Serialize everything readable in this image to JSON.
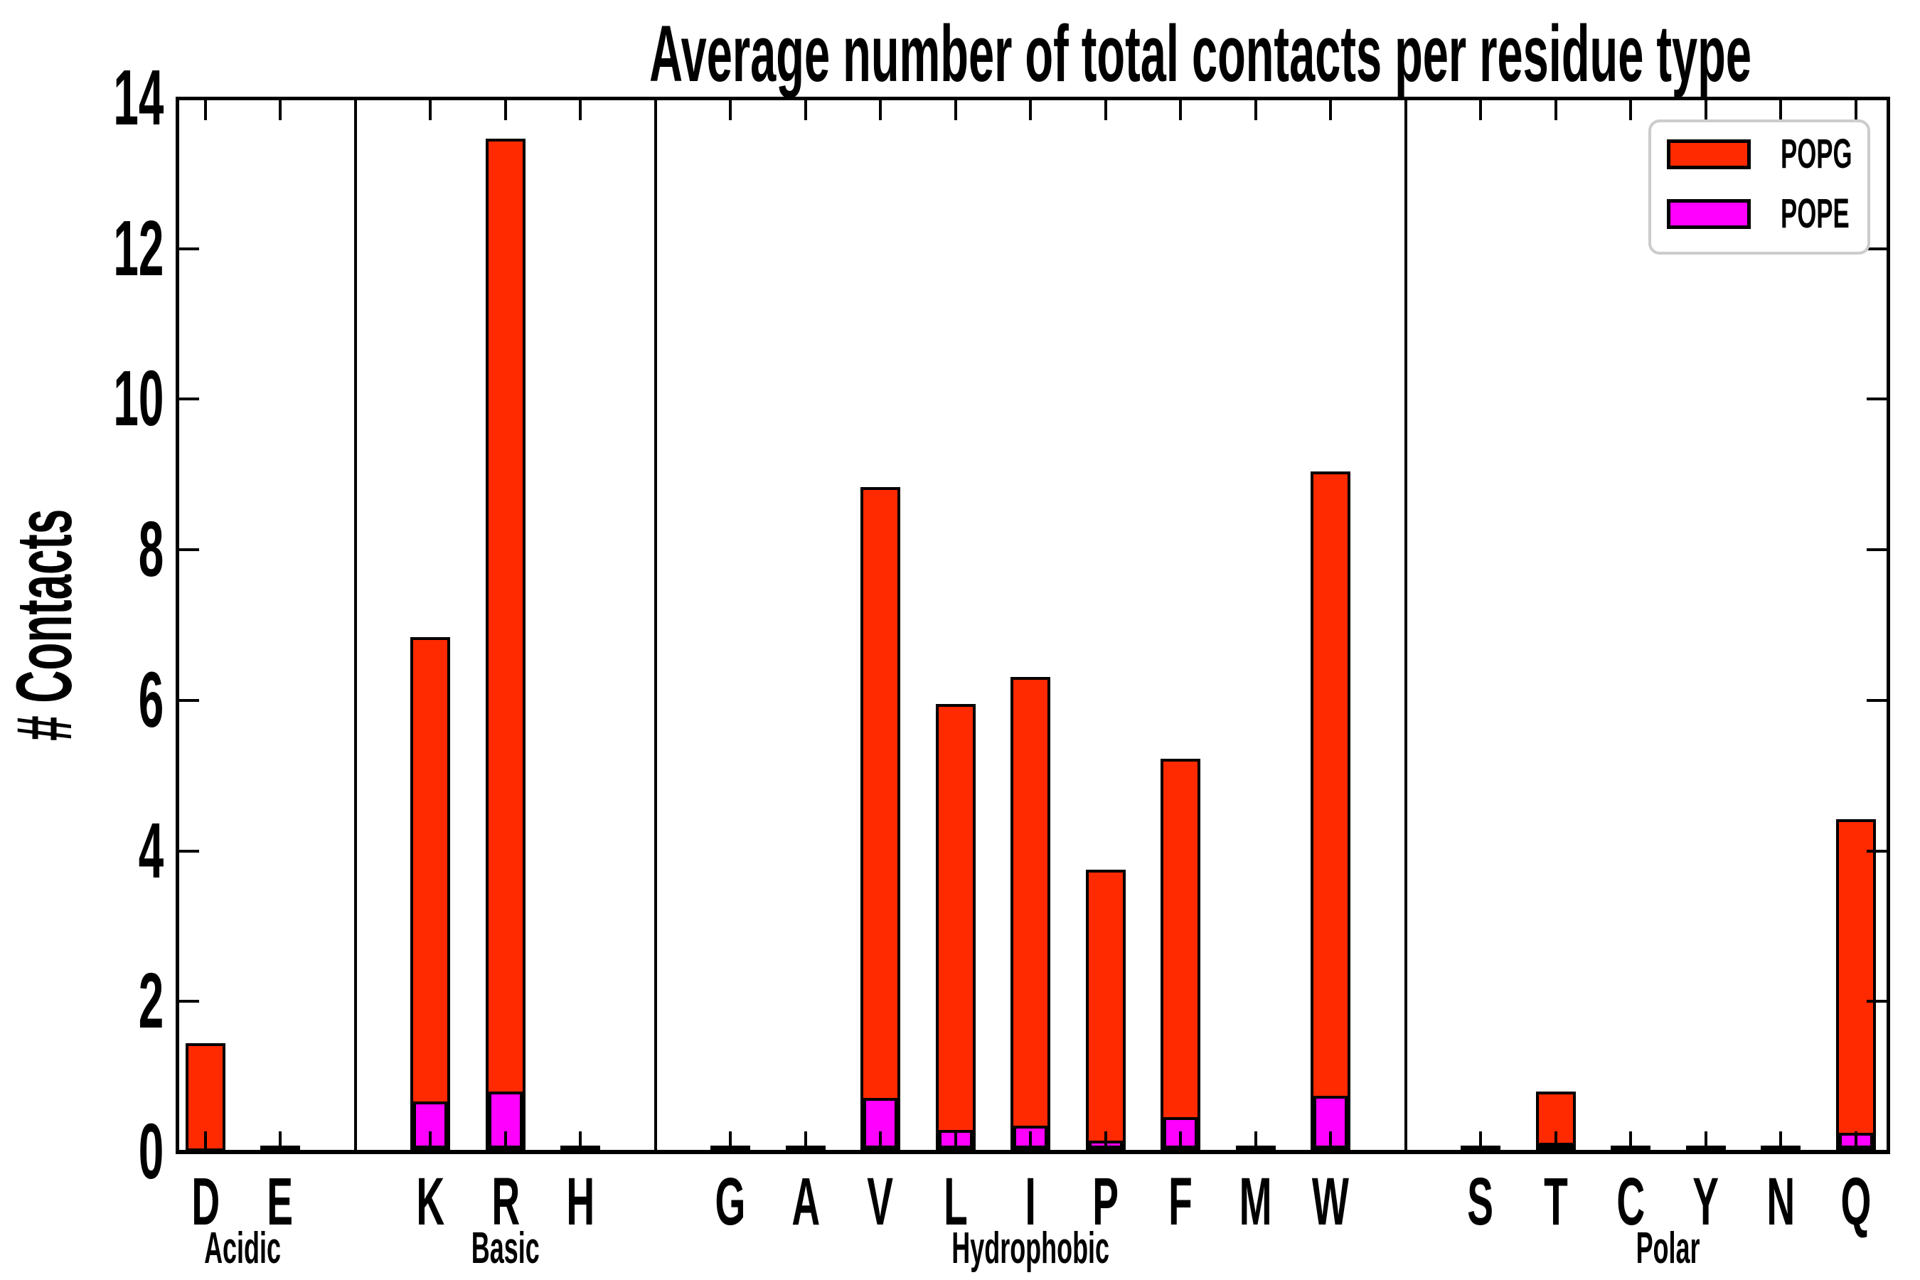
{
  "title": "Average number of total contacts per residue type",
  "ylabel": "# Contacts",
  "legend": {
    "position": "upper right",
    "entries": [
      {
        "label": "POPG",
        "color": "#FF2A00"
      },
      {
        "label": "POPE",
        "color": "#FF00FF"
      }
    ]
  },
  "chart_data": {
    "type": "bar",
    "stacked": true,
    "title": "Average number of total contacts per residue type",
    "xlabel": "",
    "ylabel": "# Contacts",
    "ylim": [
      0,
      14
    ],
    "yticks": [
      0,
      2,
      4,
      6,
      8,
      10,
      12,
      14
    ],
    "grid": false,
    "series_order_bottom_to_top": [
      "POPE",
      "POPG"
    ],
    "colors": {
      "POPG": "#FF2A00",
      "POPE": "#FF00FF",
      "edge": "#000000"
    },
    "groups": [
      {
        "label": "Acidic",
        "residues": [
          {
            "letter": "D",
            "POPG": 1.44,
            "POPE": 0.0
          },
          {
            "letter": "E",
            "POPG": 0.02,
            "POPE": 0.0
          }
        ]
      },
      {
        "label": "Basic",
        "residues": [
          {
            "letter": "K",
            "POPG": 6.21,
            "POPE": 0.62
          },
          {
            "letter": "R",
            "POPG": 12.69,
            "POPE": 0.76
          },
          {
            "letter": "H",
            "POPG": 0.02,
            "POPE": 0.0
          }
        ]
      },
      {
        "label": "Hydrophobic",
        "residues": [
          {
            "letter": "G",
            "POPG": 0.02,
            "POPE": 0.0
          },
          {
            "letter": "A",
            "POPG": 0.02,
            "POPE": 0.0
          },
          {
            "letter": "V",
            "POPG": 8.15,
            "POPE": 0.67
          },
          {
            "letter": "L",
            "POPG": 5.69,
            "POPE": 0.25
          },
          {
            "letter": "I",
            "POPG": 6.0,
            "POPE": 0.3
          },
          {
            "letter": "P",
            "POPG": 3.64,
            "POPE": 0.1
          },
          {
            "letter": "F",
            "POPG": 4.79,
            "POPE": 0.42
          },
          {
            "letter": "M",
            "POPG": 0.02,
            "POPE": 0.0
          },
          {
            "letter": "W",
            "POPG": 8.33,
            "POPE": 0.7
          }
        ]
      },
      {
        "label": "Polar",
        "residues": [
          {
            "letter": "S",
            "POPG": 0.02,
            "POPE": 0.0
          },
          {
            "letter": "T",
            "POPG": 0.73,
            "POPE": 0.06
          },
          {
            "letter": "C",
            "POPG": 0.01,
            "POPE": 0.0
          },
          {
            "letter": "Y",
            "POPG": 0.01,
            "POPE": 0.0
          },
          {
            "letter": "N",
            "POPG": 0.02,
            "POPE": 0.0
          },
          {
            "letter": "Q",
            "POPG": 4.2,
            "POPE": 0.21
          }
        ]
      }
    ]
  }
}
